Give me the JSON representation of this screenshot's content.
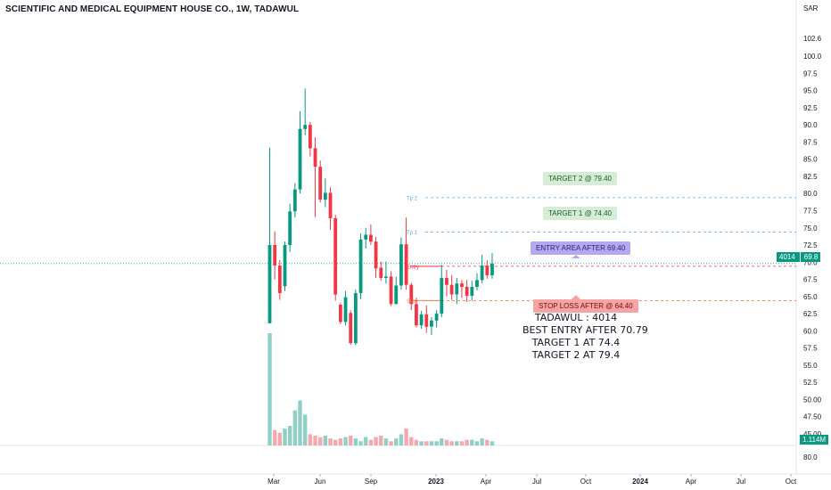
{
  "title_symbol": "SCIENTIFIC AND MEDICAL EQUIPMENT HOUSE CO., 1W, TADAWUL",
  "currency": "SAR",
  "last_price_symbol": "4014",
  "last_price": "69.8",
  "volume_badge": "1.114M",
  "volume_axis_value": "80.0",
  "colors": {
    "up": "#089981",
    "down": "#f23645",
    "vol_up": "#8fcfc6",
    "vol_down": "#f5a9ae",
    "target": "#5aa9e6",
    "stop": "#f57c5c",
    "entry": "#f23645"
  },
  "levels": {
    "tp2_marker": "Tp 2",
    "tp1_marker": "Tp 1",
    "entry_marker": "Entry",
    "stop_marker": "Stop",
    "target2_label": "TARGET 2 @ 79.40",
    "target1_label": "TARGET 1 @ 74.40",
    "entry_label": "ENTRY AREA AFTER 69.40",
    "stop_label": "STOP LOSS AFTER @ 64.40"
  },
  "annotation": {
    "line1": "TADAWUL : 4014",
    "line2": "BEST ENTRY AFTER 70.79",
    "line3": "TARGET 1 AT 74.4",
    "line4": "TARGET 2 AT 79.4"
  },
  "chart_data": {
    "type": "candlestick",
    "title": "SCIENTIFIC AND MEDICAL EQUIPMENT HOUSE CO., 1W, TADAWUL",
    "y_ticks": [
      "102.6",
      "100.0",
      "97.5",
      "95.0",
      "92.5",
      "90.0",
      "87.5",
      "85.0",
      "82.5",
      "80.0",
      "77.5",
      "75.0",
      "72.5",
      "70.0",
      "67.5",
      "65.0",
      "62.5",
      "60.0",
      "57.5",
      "55.0",
      "52.5",
      "50.00",
      "47.50",
      "45.00"
    ],
    "x_ticks": [
      "Mar",
      "Jun",
      "Sep",
      "2023",
      "Apr",
      "Jul",
      "Oct",
      "2024",
      "Apr",
      "Jul",
      "Oct"
    ],
    "ylim": [
      43.3,
      104.3
    ],
    "horizontal_levels": [
      {
        "name": "Tp 2",
        "value": 79.4
      },
      {
        "name": "Tp 1",
        "value": 74.4
      },
      {
        "name": "Entry",
        "value": 69.4
      },
      {
        "name": "Stop",
        "value": 64.4
      },
      {
        "name": "last",
        "value": 69.8
      }
    ],
    "candles": [
      [
        61.1,
        72.5,
        86.7,
        61.1
      ],
      [
        72.5,
        69.5,
        74.5,
        67.5
      ],
      [
        69.5,
        65.5,
        70.3,
        64.5
      ],
      [
        66.5,
        72.5,
        73.0,
        65.8
      ],
      [
        72.5,
        77.4,
        78.5,
        71.5
      ],
      [
        77.4,
        80.6,
        81.5,
        76.5
      ],
      [
        80.6,
        89.4,
        92.0,
        80.0
      ],
      [
        89.4,
        90.0,
        95.3,
        88.5
      ],
      [
        90.0,
        86.6,
        90.4,
        85.4
      ],
      [
        86.6,
        83.9,
        88.2,
        76.6
      ],
      [
        83.9,
        79.1,
        84.8,
        78.7
      ],
      [
        79.1,
        80.1,
        82.2,
        78.0
      ],
      [
        80.1,
        76.4,
        80.9,
        74.7
      ],
      [
        76.4,
        65.3,
        76.9,
        64.4
      ],
      [
        63.8,
        61.3,
        64.1,
        61.0
      ],
      [
        61.3,
        64.9,
        65.8,
        60.8
      ],
      [
        62.6,
        58.2,
        63.0,
        58.0
      ],
      [
        58.2,
        65.5,
        66.0,
        57.9
      ],
      [
        65.5,
        73.3,
        74.2,
        64.6
      ],
      [
        73.3,
        74.0,
        75.0,
        72.0
      ],
      [
        74.0,
        73.0,
        75.5,
        72.5
      ],
      [
        73.0,
        69.1,
        73.7,
        67.7
      ],
      [
        69.2,
        67.7,
        70.1,
        67.3
      ],
      [
        67.7,
        67.9,
        70.1,
        66.9
      ],
      [
        67.9,
        63.9,
        68.7,
        63.6
      ],
      [
        63.9,
        66.6,
        67.9,
        63.9
      ],
      [
        66.6,
        72.6,
        73.6,
        66.0
      ],
      [
        72.6,
        66.7,
        76.5,
        66.0
      ],
      [
        66.7,
        63.9,
        67.0,
        63.0
      ],
      [
        63.9,
        60.8,
        64.8,
        60.5
      ],
      [
        60.8,
        62.4,
        62.9,
        60.3
      ],
      [
        62.4,
        60.6,
        63.7,
        59.7
      ],
      [
        60.6,
        61.5,
        62.0,
        59.4
      ],
      [
        61.5,
        62.5,
        63.0,
        60.5
      ],
      [
        62.5,
        67.7,
        69.6,
        62.0
      ],
      [
        67.7,
        66.7,
        68.9,
        65.0
      ],
      [
        66.7,
        65.3,
        68.1,
        64.5
      ],
      [
        65.3,
        66.9,
        67.7,
        63.9
      ],
      [
        66.9,
        66.4,
        67.4,
        64.8
      ],
      [
        66.4,
        65.1,
        67.4,
        64.2
      ],
      [
        65.1,
        66.4,
        67.3,
        64.4
      ],
      [
        66.4,
        67.4,
        68.4,
        65.9
      ],
      [
        67.4,
        69.5,
        71.1,
        66.9
      ],
      [
        69.5,
        68.1,
        70.3,
        67.6
      ],
      [
        68.1,
        69.8,
        71.3,
        67.6
      ]
    ],
    "volume": {
      "max_label": "80.0",
      "values": [
        80,
        11,
        9,
        12,
        14,
        25,
        32,
        22,
        8,
        7,
        6,
        7,
        5,
        4,
        5,
        6,
        7,
        5,
        3,
        6,
        4,
        6,
        7,
        5,
        3,
        5,
        8,
        12,
        6,
        4,
        3,
        3,
        3,
        3,
        5,
        4,
        3,
        3,
        3,
        4,
        4,
        3,
        5,
        4,
        3
      ],
      "up": [
        true,
        false,
        false,
        true,
        true,
        true,
        true,
        true,
        false,
        false,
        false,
        true,
        false,
        false,
        false,
        true,
        false,
        true,
        true,
        true,
        false,
        false,
        false,
        true,
        false,
        true,
        true,
        false,
        false,
        false,
        true,
        false,
        true,
        true,
        true,
        false,
        false,
        true,
        false,
        false,
        true,
        true,
        true,
        false,
        true
      ]
    }
  }
}
